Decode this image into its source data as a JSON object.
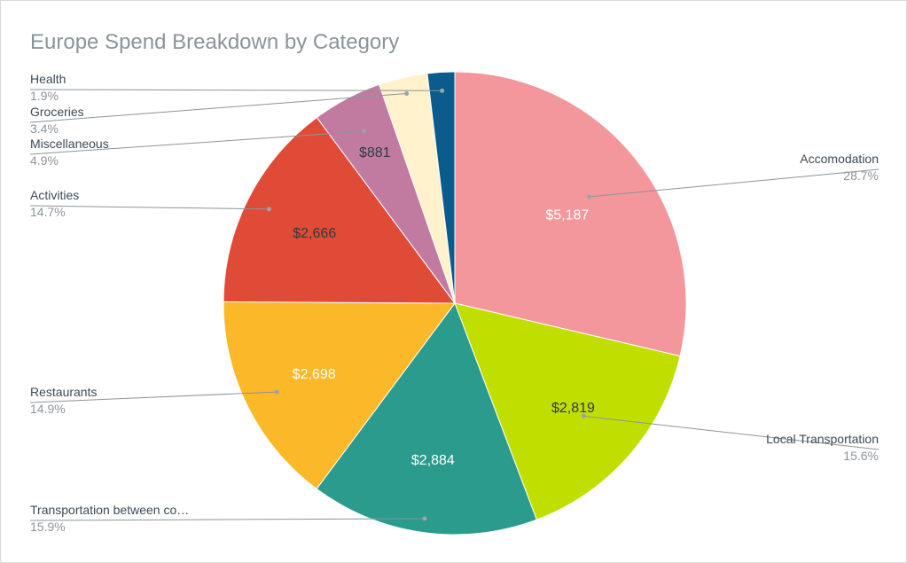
{
  "chart_data": {
    "type": "pie",
    "title": "Europe Spend Breakdown by Category",
    "slices": [
      {
        "name": "Accomodation",
        "value": 5187,
        "value_label": "$5,187",
        "percent_label": "28.7%",
        "color": "#f4979c",
        "value_color": "#ffffff"
      },
      {
        "name": "Local Transportation",
        "value": 2819,
        "value_label": "$2,819",
        "percent_label": "15.6%",
        "color": "#c0df00",
        "value_color": "#2f3a40"
      },
      {
        "name": "Transportation between co…",
        "value": 2884,
        "value_label": "$2,884",
        "percent_label": "15.9%",
        "color": "#2a9b8c",
        "value_color": "#ffffff"
      },
      {
        "name": "Restaurants",
        "value": 2698,
        "value_label": "$2,698",
        "percent_label": "14.9%",
        "color": "#fbb829",
        "value_color": "#ffffff"
      },
      {
        "name": "Activities",
        "value": 2666,
        "value_label": "$2,666",
        "percent_label": "14.7%",
        "color": "#e04b38",
        "value_color": "#2f3a40"
      },
      {
        "name": "Miscellaneous",
        "value": 881,
        "value_label": "$881",
        "percent_label": "4.9%",
        "color": "#c27ba0",
        "value_color": "#2f3a40"
      },
      {
        "name": "Groceries",
        "value": 615,
        "value_label": "",
        "percent_label": "3.4%",
        "color": "#fff2cc",
        "value_color": "#2f3a40"
      },
      {
        "name": "Health",
        "value": 344,
        "value_label": "",
        "percent_label": "1.9%",
        "color": "#0b5c8c",
        "value_color": "#ffffff"
      }
    ],
    "legend": "outside-labels"
  }
}
